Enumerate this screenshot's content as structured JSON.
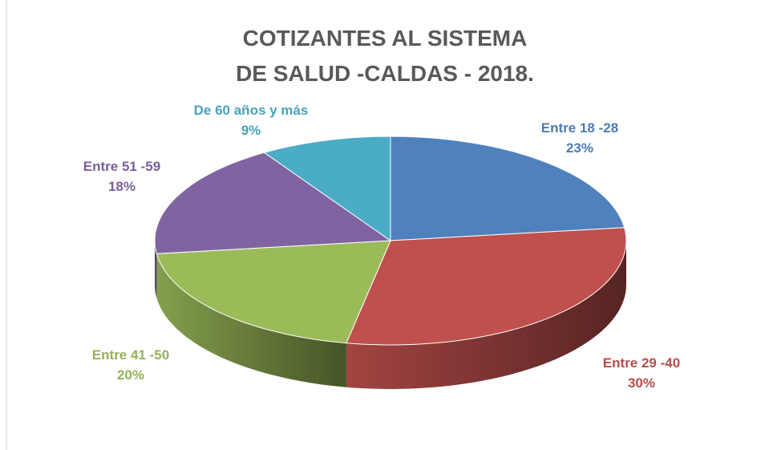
{
  "chart_data": {
    "type": "pie3d",
    "title": "COTIZANTES AL SISTEMA DE SALUD -CALDAS - 2018.",
    "categories": [
      "Entre 18 -28",
      "Entre 29 -40",
      "Entre 41 -50",
      "Entre 51 -59",
      "De 60 años y más"
    ],
    "values": [
      23,
      30,
      20,
      18,
      9
    ],
    "value_labels": [
      "23%",
      "30%",
      "20%",
      "18%",
      "9%"
    ],
    "colors": [
      "#4f81bd",
      "#c0504d",
      "#9bbb59",
      "#8064a2",
      "#4bacc6"
    ]
  }
}
